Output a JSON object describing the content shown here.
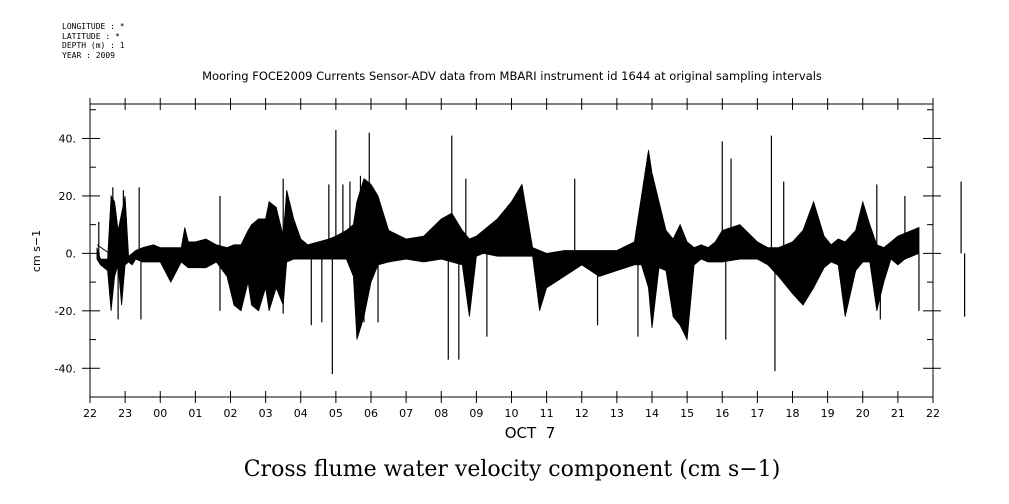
{
  "metadata": {
    "longitude": "LONGITUDE : *",
    "latitude": "LATITUDE : *",
    "depth": "DEPTH (m) : 1",
    "year": "YEAR : 2009"
  },
  "chart_data": {
    "type": "line",
    "title": "Mooring FOCE2009 Currents Sensor-ADV data from MBARI instrument id 1644 at original sampling intervals",
    "xlabel": "OCT  7",
    "ylabel": "cm s−1",
    "caption": "Cross flume water velocity component (cm s−1)",
    "xlim": [
      0,
      23.6
    ],
    "ylim": [
      -50,
      52
    ],
    "x_ticks": [
      {
        "x": 0,
        "label": "22"
      },
      {
        "x": 1,
        "label": "23"
      },
      {
        "x": 2,
        "label": "00"
      },
      {
        "x": 3,
        "label": "01"
      },
      {
        "x": 4,
        "label": "02"
      },
      {
        "x": 5,
        "label": "03"
      },
      {
        "x": 6,
        "label": "04"
      },
      {
        "x": 7,
        "label": "05"
      },
      {
        "x": 8,
        "label": "06"
      },
      {
        "x": 9,
        "label": "07"
      },
      {
        "x": 10,
        "label": "08"
      },
      {
        "x": 11,
        "label": "09"
      },
      {
        "x": 12,
        "label": "10"
      },
      {
        "x": 13,
        "label": "11"
      },
      {
        "x": 14,
        "label": "12"
      },
      {
        "x": 15,
        "label": "13"
      },
      {
        "x": 16,
        "label": "14"
      },
      {
        "x": 17,
        "label": "15"
      },
      {
        "x": 18,
        "label": "16"
      },
      {
        "x": 19,
        "label": "17"
      },
      {
        "x": 20,
        "label": "18"
      },
      {
        "x": 21,
        "label": "19"
      },
      {
        "x": 22,
        "label": "20"
      },
      {
        "x": 23,
        "label": "21"
      },
      {
        "x": 24,
        "label": "22"
      }
    ],
    "y_ticks": [
      {
        "y": 40,
        "label": "40."
      },
      {
        "y": 20,
        "label": "20."
      },
      {
        "y": 0,
        "label": "0."
      },
      {
        "y": -20,
        "label": "-20."
      },
      {
        "y": -40,
        "label": "-40."
      }
    ],
    "envelope": {
      "x": [
        0.2,
        0.3,
        0.5,
        0.6,
        0.7,
        0.8,
        0.9,
        1.0,
        1.1,
        1.2,
        1.3,
        1.5,
        1.8,
        2.0,
        2.3,
        2.6,
        2.7,
        2.8,
        3.0,
        3.3,
        3.6,
        3.9,
        4.1,
        4.3,
        4.5,
        4.6,
        4.8,
        5.0,
        5.1,
        5.3,
        5.5,
        5.6,
        5.8,
        6.0,
        6.2,
        6.5,
        6.8,
        7.0,
        7.3,
        7.5,
        7.6,
        7.8,
        8.0,
        8.2,
        8.5,
        9.0,
        9.5,
        10.0,
        10.3,
        10.6,
        10.8,
        11.0,
        11.2,
        11.6,
        12.0,
        12.3,
        12.6,
        12.8,
        13.0,
        13.5,
        14.0,
        14.5,
        15.0,
        15.5,
        15.7,
        15.9,
        16.0,
        16.2,
        16.4,
        16.6,
        16.8,
        17.0,
        17.2,
        17.4,
        17.6,
        17.8,
        18.0,
        18.5,
        19.0,
        19.3,
        19.6,
        20.0,
        20.3,
        20.6,
        20.9,
        21.1,
        21.3,
        21.5,
        21.8,
        22.0,
        22.2,
        22.4,
        22.6,
        22.8,
        23.0,
        23.2,
        23.4,
        23.6
      ],
      "upper": [
        2,
        -2,
        -2,
        20,
        18,
        8,
        14,
        20,
        -1,
        0,
        1,
        2,
        3,
        2,
        2,
        2,
        9,
        4,
        4,
        5,
        3,
        2,
        3,
        3,
        8,
        10,
        12,
        12,
        18,
        16,
        6,
        22,
        12,
        5,
        3,
        4,
        5,
        6,
        8,
        10,
        18,
        26,
        24,
        20,
        8,
        5,
        6,
        12,
        14,
        8,
        5,
        6,
        8,
        12,
        18,
        24,
        2,
        1,
        0,
        1,
        1,
        1,
        1,
        4,
        20,
        36,
        28,
        18,
        8,
        5,
        10,
        4,
        2,
        3,
        2,
        4,
        8,
        10,
        4,
        2,
        2,
        4,
        8,
        18,
        6,
        3,
        5,
        4,
        8,
        18,
        10,
        3,
        2,
        4,
        6,
        7,
        8,
        9
      ],
      "lower": [
        -2,
        -4,
        -6,
        -20,
        -8,
        -4,
        -18,
        -4,
        -3,
        -4,
        -2,
        -3,
        -3,
        -3,
        -10,
        -3,
        -4,
        -5,
        -5,
        -5,
        -3,
        -8,
        -18,
        -20,
        -10,
        -18,
        -20,
        -12,
        -20,
        -12,
        -18,
        -3,
        -2,
        -2,
        -2,
        -2,
        -2,
        -2,
        -2,
        -8,
        -30,
        -22,
        -10,
        -4,
        -3,
        -2,
        -3,
        -2,
        -3,
        -4,
        -22,
        -1,
        0,
        -1,
        -1,
        -1,
        -1,
        -20,
        -12,
        -8,
        -4,
        -8,
        -6,
        -4,
        -4,
        -12,
        -26,
        -5,
        -6,
        -22,
        -25,
        -30,
        -4,
        -2,
        -3,
        -3,
        -3,
        -2,
        -2,
        -4,
        -8,
        -14,
        -18,
        -12,
        -5,
        -3,
        -4,
        -22,
        -6,
        -3,
        -3,
        -20,
        -10,
        -2,
        -4,
        -2,
        -1,
        0
      ]
    },
    "spikes": [
      {
        "x": 0.25,
        "y": 11
      },
      {
        "x": 0.65,
        "y": 23
      },
      {
        "x": 0.8,
        "y": -23
      },
      {
        "x": 0.95,
        "y": 22
      },
      {
        "x": 1.4,
        "y": 23
      },
      {
        "x": 1.45,
        "y": -23
      },
      {
        "x": 3.7,
        "y": 20
      },
      {
        "x": 3.7,
        "y": -20
      },
      {
        "x": 5.5,
        "y": 26
      },
      {
        "x": 5.5,
        "y": -21
      },
      {
        "x": 6.3,
        "y": -25
      },
      {
        "x": 6.6,
        "y": -24
      },
      {
        "x": 6.8,
        "y": 24
      },
      {
        "x": 6.9,
        "y": -42
      },
      {
        "x": 7.0,
        "y": 43
      },
      {
        "x": 7.2,
        "y": 24
      },
      {
        "x": 7.4,
        "y": 25
      },
      {
        "x": 7.7,
        "y": 27
      },
      {
        "x": 7.8,
        "y": -24
      },
      {
        "x": 7.95,
        "y": 42
      },
      {
        "x": 8.2,
        "y": -24
      },
      {
        "x": 10.2,
        "y": -37
      },
      {
        "x": 10.3,
        "y": 41
      },
      {
        "x": 10.5,
        "y": -37
      },
      {
        "x": 10.7,
        "y": 26
      },
      {
        "x": 11.3,
        "y": -29
      },
      {
        "x": 13.8,
        "y": 26
      },
      {
        "x": 14.45,
        "y": -25
      },
      {
        "x": 15.6,
        "y": -29
      },
      {
        "x": 18.0,
        "y": 39
      },
      {
        "x": 18.1,
        "y": -30
      },
      {
        "x": 18.25,
        "y": 33
      },
      {
        "x": 19.4,
        "y": 41
      },
      {
        "x": 19.5,
        "y": -41
      },
      {
        "x": 19.75,
        "y": 25
      },
      {
        "x": 22.4,
        "y": 24
      },
      {
        "x": 22.5,
        "y": -23
      },
      {
        "x": 23.2,
        "y": 20
      },
      {
        "x": 23.6,
        "y": -20
      },
      {
        "x": 24.8,
        "y": 25
      },
      {
        "x": 24.9,
        "y": -22
      }
    ]
  }
}
